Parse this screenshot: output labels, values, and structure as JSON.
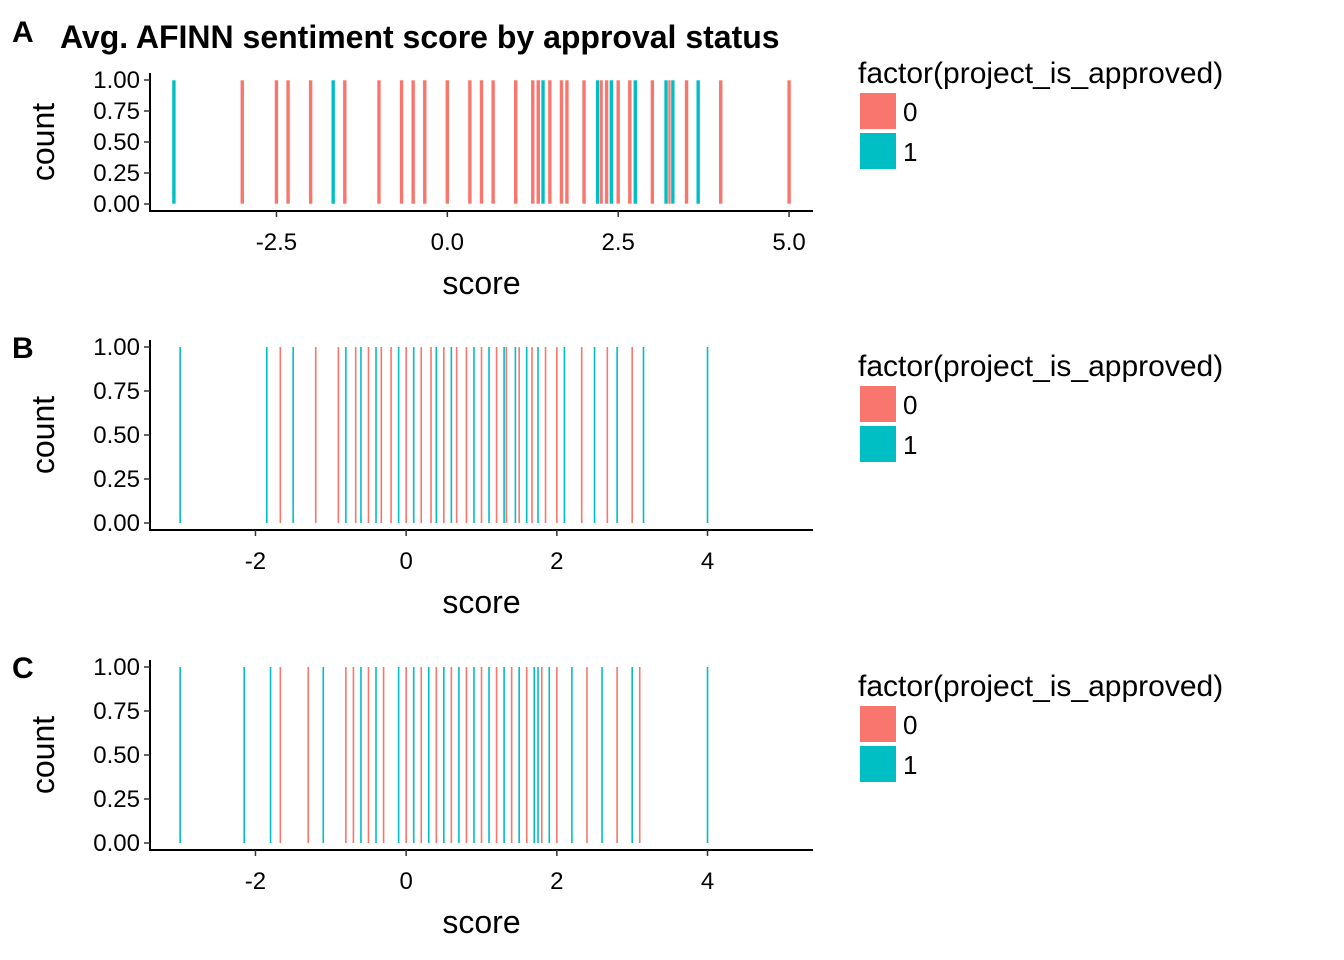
{
  "figure": {
    "title": "Avg. AFINN sentiment score by approval status",
    "legend_title": "factor(project_is_approved)",
    "colors": {
      "0": "#F8766D",
      "1": "#00BFC4"
    }
  },
  "chart_data": [
    {
      "panel": "A",
      "type": "bar",
      "title": "Avg. AFINN sentiment score by approval status",
      "xlabel": "score",
      "ylabel": "count",
      "xlim": [
        -4.35,
        5.35
      ],
      "ylim": [
        0,
        1
      ],
      "xticks": [
        -2.5,
        0.0,
        2.5,
        5.0
      ],
      "xtick_labels": [
        "-2.5",
        "0.0",
        "2.5",
        "5.0"
      ],
      "yticks": [
        0,
        0.25,
        0.5,
        0.75,
        1.0
      ],
      "ytick_labels": [
        "0.00",
        "0.25",
        "0.50",
        "0.75",
        "1.00"
      ],
      "legend": {
        "title": "factor(project_is_approved)",
        "labels": [
          "0",
          "1"
        ],
        "placement": "right"
      },
      "series": [
        {
          "name": "0",
          "color": "#F8766D",
          "x": [
            -3.0,
            -2.5,
            -2.33,
            -2.0,
            -1.5,
            -1.0,
            -0.67,
            -0.5,
            -0.33,
            0.0,
            0.33,
            0.5,
            0.67,
            1.0,
            1.25,
            1.33,
            1.5,
            1.67,
            1.75,
            2.0,
            2.25,
            2.33,
            2.5,
            2.67,
            3.0,
            3.25,
            3.5,
            4.0,
            5.0
          ],
          "values": [
            1,
            1,
            1,
            1,
            1,
            1,
            1,
            1,
            1,
            1,
            1,
            1,
            1,
            1,
            1,
            1,
            1,
            1,
            1,
            1,
            1,
            1,
            1,
            1,
            1,
            1,
            1,
            1,
            1
          ]
        },
        {
          "name": "1",
          "color": "#00BFC4",
          "x": [
            -4.0,
            -1.67,
            1.4,
            2.2,
            2.4,
            2.75,
            3.2,
            3.3,
            3.67
          ],
          "values": [
            1,
            1,
            1,
            1,
            1,
            1,
            1,
            1,
            1
          ]
        }
      ]
    },
    {
      "panel": "B",
      "type": "bar",
      "xlabel": "score",
      "ylabel": "count",
      "xlim": [
        -3.4,
        5.4
      ],
      "ylim": [
        0,
        1
      ],
      "xticks": [
        -2,
        0,
        2,
        4
      ],
      "xtick_labels": [
        "-2",
        "0",
        "2",
        "4"
      ],
      "yticks": [
        0,
        0.25,
        0.5,
        0.75,
        1.0
      ],
      "ytick_labels": [
        "0.00",
        "0.25",
        "0.50",
        "0.75",
        "1.00"
      ],
      "legend": {
        "title": "factor(project_is_approved)",
        "labels": [
          "0",
          "1"
        ],
        "placement": "right"
      },
      "series": [
        {
          "name": "0",
          "color": "#F8766D",
          "x": [
            -1.67,
            -1.2,
            -0.9,
            -0.67,
            -0.5,
            -0.33,
            -0.2,
            0.0,
            0.2,
            0.33,
            0.5,
            0.67,
            0.8,
            1.0,
            1.2,
            1.33,
            1.5,
            1.67,
            1.85,
            2.0,
            2.33,
            2.67,
            3.0
          ],
          "values": [
            1,
            1,
            1,
            1,
            1,
            1,
            1,
            1,
            1,
            1,
            1,
            1,
            1,
            1,
            1,
            1,
            1,
            1,
            1,
            1,
            1,
            1,
            1
          ]
        },
        {
          "name": "1",
          "color": "#00BFC4",
          "x": [
            -3.0,
            -1.85,
            -1.5,
            -0.8,
            -0.6,
            -0.4,
            -0.1,
            0.1,
            0.4,
            0.6,
            0.9,
            1.1,
            1.3,
            1.45,
            1.6,
            1.75,
            2.1,
            2.5,
            2.8,
            3.15,
            4.0
          ],
          "values": [
            1,
            1,
            1,
            1,
            1,
            1,
            1,
            1,
            1,
            1,
            1,
            1,
            1,
            1,
            1,
            1,
            1,
            1,
            1,
            1,
            1
          ]
        }
      ]
    },
    {
      "panel": "C",
      "type": "bar",
      "xlabel": "score",
      "ylabel": "count",
      "xlim": [
        -3.4,
        5.4
      ],
      "ylim": [
        0,
        1
      ],
      "xticks": [
        -2,
        0,
        2,
        4
      ],
      "xtick_labels": [
        "-2",
        "0",
        "2",
        "4"
      ],
      "yticks": [
        0,
        0.25,
        0.5,
        0.75,
        1.0
      ],
      "ytick_labels": [
        "0.00",
        "0.25",
        "0.50",
        "0.75",
        "1.00"
      ],
      "legend": {
        "title": "factor(project_is_approved)",
        "labels": [
          "0",
          "1"
        ],
        "placement": "right"
      },
      "series": [
        {
          "name": "0",
          "color": "#F8766D",
          "x": [
            -1.67,
            -1.3,
            -0.8,
            -0.7,
            -0.5,
            -0.3,
            0.0,
            0.2,
            0.4,
            0.6,
            0.8,
            1.0,
            1.2,
            1.4,
            1.6,
            1.8,
            2.0,
            2.4,
            2.8,
            3.1
          ],
          "values": [
            1,
            1,
            1,
            1,
            1,
            1,
            1,
            1,
            1,
            1,
            1,
            1,
            1,
            1,
            1,
            1,
            1,
            1,
            1,
            1
          ]
        },
        {
          "name": "1",
          "color": "#00BFC4",
          "x": [
            -3.0,
            -2.15,
            -1.8,
            -1.1,
            -0.6,
            -0.4,
            -0.1,
            0.1,
            0.3,
            0.5,
            0.7,
            0.9,
            1.1,
            1.3,
            1.5,
            1.7,
            1.75,
            1.9,
            2.2,
            2.6,
            3.0,
            4.0
          ],
          "values": [
            1,
            1,
            1,
            1,
            1,
            1,
            1,
            1,
            1,
            1,
            1,
            1,
            1,
            1,
            1,
            1,
            1,
            1,
            1,
            1,
            1,
            1
          ]
        }
      ]
    }
  ]
}
